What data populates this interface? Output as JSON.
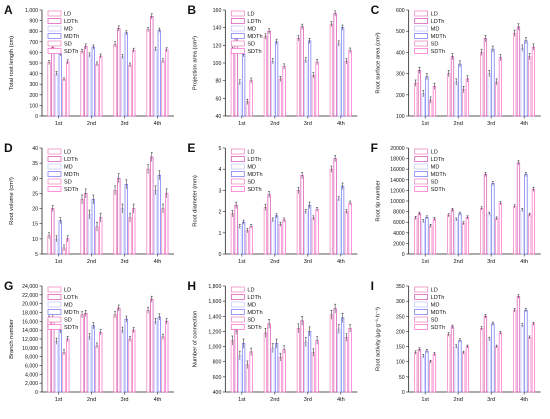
{
  "figure": {
    "categories": [
      "1st",
      "2nd",
      "3rd",
      "4th"
    ],
    "legend_labels": [
      "LD",
      "LDTh",
      "MD",
      "MDTh",
      "SD",
      "SDTh"
    ],
    "colors": {
      "LD": "#f07fbf",
      "LDTh": "#d94bb0",
      "MD": "#bfc3ff",
      "MDTh": "#6f73f2",
      "SD": "#f07fbf",
      "SDTh": "#ff66cc",
      "errorbar": "#222222",
      "axis": "#222222",
      "text": "#111111"
    }
  },
  "chart_data": [
    {
      "panel": "A",
      "type": "bar",
      "ylabel": "Total root length (cm)",
      "ylim": [
        0,
        1000
      ],
      "yticks": [
        0,
        100,
        200,
        300,
        400,
        500,
        600,
        700,
        800,
        900,
        1000
      ],
      "ytick_labels": [
        "0",
        "100",
        "200",
        "300",
        "400",
        "500",
        "600",
        "700",
        "800",
        "900",
        "1,000"
      ],
      "categories": [
        "1st",
        "2nd",
        "3rd",
        "4th"
      ],
      "series": [
        {
          "name": "LD",
          "values": [
            505,
            610,
            675,
            815
          ],
          "errors": [
            20,
            20,
            25,
            20
          ]
        },
        {
          "name": "LDTh",
          "values": [
            645,
            655,
            825,
            940
          ],
          "errors": [
            25,
            25,
            25,
            25
          ]
        },
        {
          "name": "MD",
          "values": [
            400,
            575,
            560,
            630
          ],
          "errors": [
            20,
            20,
            20,
            20
          ]
        },
        {
          "name": "MDTh",
          "values": [
            585,
            650,
            785,
            810
          ],
          "errors": [
            20,
            20,
            20,
            20
          ]
        },
        {
          "name": "SD",
          "values": [
            345,
            490,
            480,
            520
          ],
          "errors": [
            15,
            20,
            20,
            20
          ]
        },
        {
          "name": "SDTh",
          "values": [
            510,
            565,
            620,
            625
          ],
          "errors": [
            20,
            20,
            20,
            20
          ]
        }
      ]
    },
    {
      "panel": "B",
      "type": "bar",
      "ylabel": "Projection area (cm²)",
      "ylim": [
        40,
        160
      ],
      "yticks": [
        40,
        60,
        80,
        100,
        120,
        140,
        160
      ],
      "ytick_labels": [
        "40",
        "60",
        "80",
        "100",
        "120",
        "140",
        "160"
      ],
      "categories": [
        "1st",
        "2nd",
        "3rd",
        "4th"
      ],
      "series": [
        {
          "name": "LD",
          "values": [
            115,
            130,
            128,
            144
          ],
          "errors": [
            3,
            3,
            3,
            3
          ]
        },
        {
          "name": "LDTh",
          "values": [
            128,
            136,
            141,
            156
          ],
          "errors": [
            3,
            3,
            3,
            3
          ]
        },
        {
          "name": "MD",
          "values": [
            78,
            102,
            103,
            122
          ],
          "errors": [
            3,
            3,
            3,
            3
          ]
        },
        {
          "name": "MDTh",
          "values": [
            110,
            124,
            125,
            140
          ],
          "errors": [
            3,
            3,
            3,
            3
          ]
        },
        {
          "name": "SD",
          "values": [
            56,
            82,
            86,
            102
          ],
          "errors": [
            3,
            3,
            3,
            3
          ]
        },
        {
          "name": "SDTh",
          "values": [
            80,
            96,
            101,
            114
          ],
          "errors": [
            3,
            3,
            3,
            3
          ]
        }
      ]
    },
    {
      "panel": "C",
      "type": "bar",
      "ylabel": "Root surface area (cm²)",
      "ylim": [
        100,
        600
      ],
      "yticks": [
        100,
        200,
        300,
        400,
        500,
        600
      ],
      "ytick_labels": [
        "100",
        "200",
        "300",
        "400",
        "500",
        "600"
      ],
      "categories": [
        "1st",
        "2nd",
        "3rd",
        "4th"
      ],
      "series": [
        {
          "name": "LD",
          "values": [
            255,
            300,
            400,
            490
          ],
          "errors": [
            15,
            15,
            15,
            15
          ]
        },
        {
          "name": "LDTh",
          "values": [
            315,
            380,
            465,
            520
          ],
          "errors": [
            15,
            15,
            15,
            15
          ]
        },
        {
          "name": "MD",
          "values": [
            205,
            260,
            300,
            420
          ],
          "errors": [
            15,
            15,
            15,
            15
          ]
        },
        {
          "name": "MDTh",
          "values": [
            285,
            345,
            415,
            455
          ],
          "errors": [
            15,
            15,
            15,
            15
          ]
        },
        {
          "name": "SD",
          "values": [
            175,
            225,
            260,
            380
          ],
          "errors": [
            15,
            15,
            15,
            15
          ]
        },
        {
          "name": "SDTh",
          "values": [
            240,
            275,
            375,
            425
          ],
          "errors": [
            15,
            15,
            15,
            15
          ]
        }
      ]
    },
    {
      "panel": "D",
      "type": "bar",
      "ylabel": "Root volume (cm³)",
      "ylim": [
        5,
        40
      ],
      "yticks": [
        5,
        10,
        15,
        20,
        25,
        30,
        35,
        40
      ],
      "ytick_labels": [
        "5",
        "10",
        "15",
        "20",
        "25",
        "30",
        "35",
        "40"
      ],
      "categories": [
        "1st",
        "2nd",
        "3rd",
        "4th"
      ],
      "series": [
        {
          "name": "LD",
          "values": [
            11,
            23,
            26,
            33
          ],
          "errors": [
            1,
            1.5,
            1.5,
            1.5
          ]
        },
        {
          "name": "LDTh",
          "values": [
            20,
            25,
            30,
            37
          ],
          "errors": [
            1,
            1.5,
            1.5,
            1.5
          ]
        },
        {
          "name": "MD",
          "values": [
            10,
            18,
            20,
            26
          ],
          "errors": [
            1,
            1.5,
            1.5,
            1.5
          ]
        },
        {
          "name": "MDTh",
          "values": [
            16,
            23,
            28,
            31
          ],
          "errors": [
            1,
            1.5,
            1.5,
            1.5
          ]
        },
        {
          "name": "SD",
          "values": [
            7,
            14,
            17,
            20
          ],
          "errors": [
            1,
            1.5,
            1.5,
            1.5
          ]
        },
        {
          "name": "SDTh",
          "values": [
            10,
            17,
            20,
            25
          ],
          "errors": [
            1,
            1.5,
            1.5,
            1.5
          ]
        }
      ]
    },
    {
      "panel": "E",
      "type": "bar",
      "ylabel": "Root diameter (mm)",
      "ylim": [
        0,
        5
      ],
      "yticks": [
        0,
        1,
        2,
        3,
        4,
        5
      ],
      "ytick_labels": [
        "0",
        "1",
        "2",
        "3",
        "4",
        "5"
      ],
      "categories": [
        "1st",
        "2nd",
        "3rd",
        "4th"
      ],
      "series": [
        {
          "name": "LD",
          "values": [
            1.9,
            2.2,
            3.0,
            4.0
          ],
          "errors": [
            0.15,
            0.15,
            0.15,
            0.15
          ]
        },
        {
          "name": "LDTh",
          "values": [
            2.3,
            2.8,
            3.7,
            4.5
          ],
          "errors": [
            0.15,
            0.15,
            0.15,
            0.15
          ]
        },
        {
          "name": "MD",
          "values": [
            1.3,
            1.6,
            2.0,
            2.6
          ],
          "errors": [
            0.1,
            0.1,
            0.1,
            0.1
          ]
        },
        {
          "name": "MDTh",
          "values": [
            1.5,
            1.8,
            2.3,
            3.2
          ],
          "errors": [
            0.1,
            0.1,
            0.15,
            0.15
          ]
        },
        {
          "name": "SD",
          "values": [
            1.1,
            1.4,
            1.7,
            2.0
          ],
          "errors": [
            0.1,
            0.1,
            0.1,
            0.1
          ]
        },
        {
          "name": "SDTh",
          "values": [
            1.3,
            1.6,
            2.1,
            2.4
          ],
          "errors": [
            0.1,
            0.1,
            0.1,
            0.1
          ]
        }
      ]
    },
    {
      "panel": "F",
      "type": "bar",
      "ylabel": "Root tip number",
      "ylim": [
        0,
        20000
      ],
      "yticks": [
        0,
        2000,
        4000,
        6000,
        8000,
        10000,
        12000,
        14000,
        16000,
        18000,
        20000
      ],
      "ytick_labels": [
        "0",
        "2000",
        "4000",
        "6000",
        "8000",
        "10000",
        "12000",
        "14000",
        "16000",
        "18000",
        "20000"
      ],
      "categories": [
        "1st",
        "2nd",
        "3rd",
        "4th"
      ],
      "series": [
        {
          "name": "LD",
          "values": [
            6800,
            7300,
            8600,
            9000
          ],
          "errors": [
            300,
            300,
            300,
            300
          ]
        },
        {
          "name": "LDTh",
          "values": [
            7600,
            8300,
            15000,
            17200
          ],
          "errors": [
            300,
            300,
            400,
            400
          ]
        },
        {
          "name": "MD",
          "values": [
            6200,
            6500,
            7600,
            8300
          ],
          "errors": [
            300,
            300,
            300,
            300
          ]
        },
        {
          "name": "MDTh",
          "values": [
            6900,
            7600,
            13300,
            15000
          ],
          "errors": [
            300,
            300,
            400,
            400
          ]
        },
        {
          "name": "SD",
          "values": [
            5300,
            5800,
            6700,
            7400
          ],
          "errors": [
            300,
            300,
            300,
            300
          ]
        },
        {
          "name": "SDTh",
          "values": [
            6600,
            6900,
            9600,
            12200
          ],
          "errors": [
            300,
            300,
            300,
            400
          ]
        }
      ]
    },
    {
      "panel": "G",
      "type": "bar",
      "ylabel": "Branch number",
      "ylim": [
        0,
        24000
      ],
      "yticks": [
        0,
        2000,
        4000,
        6000,
        8000,
        10000,
        12000,
        14000,
        16000,
        18000,
        20000,
        22000,
        24000
      ],
      "ytick_labels": [
        "0",
        "2,000",
        "4,000",
        "6,000",
        "8,000",
        "10,000",
        "12,000",
        "14,000",
        "16,000",
        "18,000",
        "20,000",
        "22,000",
        "24,000"
      ],
      "categories": [
        "1st",
        "2nd",
        "3rd",
        "4th"
      ],
      "series": [
        {
          "name": "LD",
          "values": [
            16500,
            17500,
            17500,
            18500
          ],
          "errors": [
            700,
            700,
            700,
            700
          ]
        },
        {
          "name": "LDTh",
          "values": [
            17000,
            17800,
            19000,
            21000
          ],
          "errors": [
            700,
            700,
            700,
            700
          ]
        },
        {
          "name": "MD",
          "values": [
            11500,
            12500,
            14000,
            16000
          ],
          "errors": [
            700,
            700,
            700,
            700
          ]
        },
        {
          "name": "MDTh",
          "values": [
            14000,
            15000,
            16500,
            17000
          ],
          "errors": [
            700,
            700,
            700,
            700
          ]
        },
        {
          "name": "SD",
          "values": [
            9000,
            10500,
            12000,
            12500
          ],
          "errors": [
            600,
            600,
            600,
            600
          ]
        },
        {
          "name": "SDTh",
          "values": [
            12000,
            13500,
            14000,
            16000
          ],
          "errors": [
            600,
            600,
            600,
            600
          ]
        }
      ]
    },
    {
      "panel": "H",
      "type": "bar",
      "ylabel": "Number of connection",
      "ylim": [
        400,
        1800
      ],
      "yticks": [
        400,
        600,
        800,
        1000,
        1200,
        1400,
        1600,
        1800
      ],
      "ytick_labels": [
        "400",
        "600",
        "800",
        "1,000",
        "1,200",
        "1,400",
        "1,600",
        "1,800"
      ],
      "categories": [
        "1st",
        "2nd",
        "3rd",
        "4th"
      ],
      "series": [
        {
          "name": "LD",
          "values": [
            1080,
            1180,
            1240,
            1420
          ],
          "errors": [
            60,
            60,
            60,
            60
          ]
        },
        {
          "name": "LDTh",
          "values": [
            1220,
            1300,
            1340,
            1500
          ],
          "errors": [
            60,
            60,
            60,
            60
          ]
        },
        {
          "name": "MD",
          "values": [
            880,
            980,
            1060,
            1230
          ],
          "errors": [
            60,
            60,
            60,
            60
          ]
        },
        {
          "name": "MDTh",
          "values": [
            1040,
            1040,
            1200,
            1380
          ],
          "errors": [
            60,
            60,
            60,
            60
          ]
        },
        {
          "name": "SD",
          "values": [
            760,
            860,
            920,
            1120
          ],
          "errors": [
            50,
            50,
            50,
            50
          ]
        },
        {
          "name": "SDTh",
          "values": [
            930,
            960,
            1080,
            1240
          ],
          "errors": [
            50,
            50,
            50,
            50
          ]
        }
      ]
    },
    {
      "panel": "I",
      "type": "bar",
      "ylabel": "Root activity (μg·g⁻¹·h⁻¹)",
      "ylim": [
        0,
        350
      ],
      "yticks": [
        0,
        50,
        100,
        150,
        200,
        250,
        300,
        350
      ],
      "ytick_labels": [
        "0",
        "50",
        "100",
        "150",
        "200",
        "250",
        "300",
        "350"
      ],
      "categories": [
        "1st",
        "2nd",
        "3rd",
        "4th"
      ],
      "series": [
        {
          "name": "LD",
          "values": [
            130,
            190,
            210,
            270
          ],
          "errors": [
            6,
            6,
            6,
            6
          ]
        },
        {
          "name": "LDTh",
          "values": [
            140,
            215,
            250,
            315
          ],
          "errors": [
            6,
            6,
            6,
            6
          ]
        },
        {
          "name": "MD",
          "values": [
            118,
            150,
            175,
            220
          ],
          "errors": [
            6,
            6,
            6,
            6
          ]
        },
        {
          "name": "MDTh",
          "values": [
            135,
            170,
            225,
            270
          ],
          "errors": [
            6,
            6,
            6,
            6
          ]
        },
        {
          "name": "SD",
          "values": [
            100,
            130,
            150,
            180
          ],
          "errors": [
            5,
            5,
            5,
            5
          ]
        },
        {
          "name": "SDTh",
          "values": [
            125,
            150,
            195,
            225
          ],
          "errors": [
            5,
            5,
            5,
            5
          ]
        }
      ]
    }
  ]
}
